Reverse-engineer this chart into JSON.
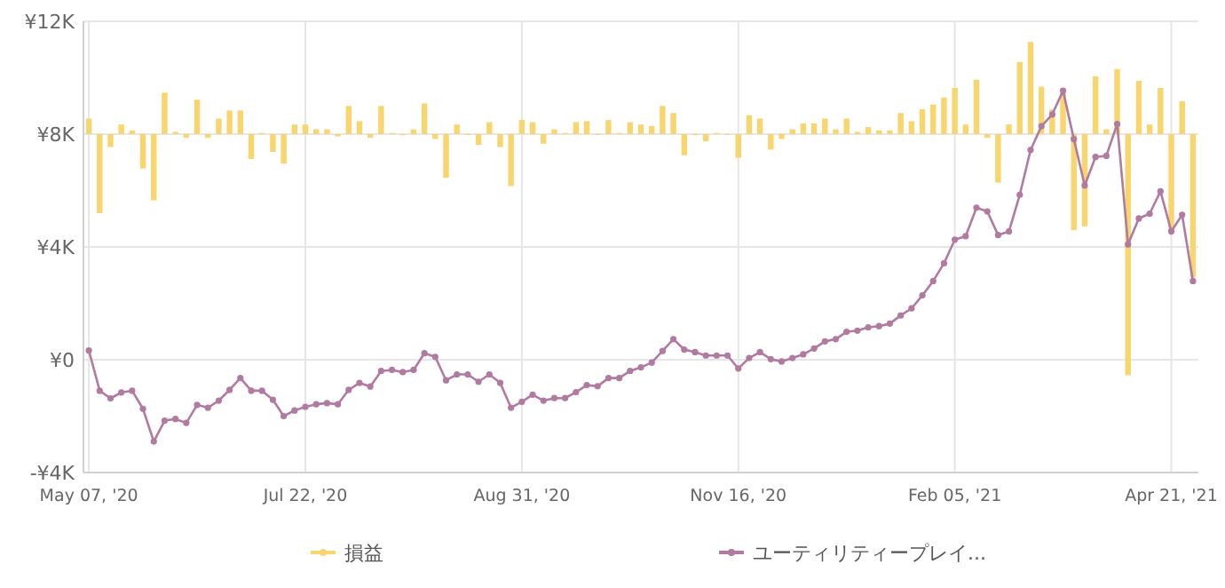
{
  "chart_data": {
    "type": "bar",
    "categories": [
      "May 07, '20",
      null,
      null,
      null,
      null,
      null,
      null,
      null,
      null,
      null,
      null,
      null,
      null,
      null,
      null,
      null,
      null,
      null,
      null,
      null,
      "Jul 22, '20",
      null,
      null,
      null,
      null,
      null,
      null,
      null,
      null,
      null,
      null,
      null,
      null,
      null,
      null,
      null,
      null,
      null,
      null,
      null,
      "Aug 31, '20",
      null,
      null,
      null,
      null,
      null,
      null,
      null,
      null,
      null,
      null,
      null,
      null,
      null,
      null,
      null,
      null,
      null,
      null,
      null,
      "Nov 16, '20",
      null,
      null,
      null,
      null,
      null,
      null,
      null,
      null,
      null,
      null,
      null,
      null,
      null,
      null,
      null,
      null,
      null,
      null,
      null,
      "Feb 05, '21",
      null,
      null,
      null,
      null,
      null,
      null,
      null,
      null,
      null,
      null,
      null,
      null,
      null,
      null,
      null,
      null,
      null,
      null,
      null,
      "Apr 21, '21",
      null,
      null
    ],
    "series": [
      {
        "name": "損益",
        "color": "#f9d56e",
        "base": [
          8000,
          8000,
          8000,
          8000,
          8000,
          8000,
          8000,
          8000,
          8000,
          8000,
          8000,
          8000,
          8000,
          8000,
          8000,
          8000,
          8000,
          8000,
          8000,
          8000,
          8000,
          8000,
          8000,
          8000,
          8000,
          8000,
          8000,
          8000,
          8000,
          8000,
          8000,
          8000,
          8000,
          8000,
          8000,
          8000,
          8000,
          8000,
          8000,
          8000,
          8000,
          8000,
          8000,
          8000,
          8000,
          8000,
          8000,
          8000,
          8000,
          8000,
          8000,
          8000,
          8000,
          8000,
          8000,
          8000,
          8000,
          8000,
          8000,
          8000,
          8000,
          8000,
          8000,
          8000,
          8000,
          8000,
          8000,
          8000,
          8000,
          8000,
          8000,
          8000,
          8000,
          8000,
          8000,
          8000,
          8000,
          8000,
          8000,
          8000,
          8000,
          8000,
          8000,
          8000,
          8000,
          8000,
          8000,
          8000,
          8000,
          8000,
          8000,
          8000,
          8000,
          8000,
          8000,
          8000,
          8000,
          8000,
          8000,
          8000,
          8000,
          8000,
          8000
        ],
        "values": [
          550,
          -2800,
          -460,
          340,
          130,
          -1220,
          -2350,
          1470,
          80,
          -130,
          1220,
          -130,
          550,
          840,
          840,
          -880,
          40,
          -630,
          -1050,
          340,
          340,
          170,
          170,
          -80,
          1000,
          460,
          -130,
          1000,
          40,
          -40,
          170,
          1090,
          -170,
          -1550,
          340,
          0,
          -380,
          420,
          -460,
          -1840,
          500,
          420,
          -340,
          170,
          40,
          420,
          460,
          0,
          500,
          40,
          420,
          340,
          290,
          1000,
          750,
          -750,
          -40,
          -250,
          40,
          0,
          -840,
          670,
          550,
          -550,
          -170,
          170,
          380,
          380,
          550,
          170,
          550,
          80,
          250,
          130,
          130,
          750,
          460,
          880,
          1050,
          1300,
          1640,
          340,
          1930,
          -130,
          -1720,
          340,
          2560,
          3270,
          1680,
          880,
          1470,
          -3400,
          -3270,
          2050,
          170,
          2310,
          -8550,
          1890,
          340,
          1640,
          -3400,
          1170,
          -5070
        ]
      },
      {
        "name": "ユーティリティープレイ...",
        "type": "line",
        "color": "#b07aa1",
        "marker": "circle",
        "values": [
          330,
          -1100,
          -1370,
          -1160,
          -1100,
          -1740,
          -2900,
          -2160,
          -2100,
          -2240,
          -1600,
          -1700,
          -1450,
          -1070,
          -650,
          -1100,
          -1100,
          -1420,
          -2000,
          -1800,
          -1670,
          -1580,
          -1540,
          -1580,
          -1070,
          -820,
          -950,
          -400,
          -360,
          -440,
          -360,
          230,
          100,
          -730,
          -520,
          -520,
          -780,
          -520,
          -820,
          -1700,
          -1490,
          -1240,
          -1450,
          -1360,
          -1360,
          -1150,
          -900,
          -940,
          -650,
          -650,
          -400,
          -270,
          -100,
          310,
          730,
          360,
          270,
          150,
          150,
          150,
          -310,
          60,
          270,
          20,
          -60,
          60,
          190,
          400,
          650,
          730,
          990,
          1030,
          1150,
          1190,
          1280,
          1570,
          1820,
          2280,
          2790,
          3420,
          4260,
          4380,
          5390,
          5260,
          4420,
          4550,
          5850,
          7440,
          8280,
          8700,
          9540,
          7820,
          6180,
          7190,
          7230,
          8360,
          4090,
          5010,
          5180,
          5970,
          4550,
          5140,
          2790
        ]
      }
    ],
    "ylim": [
      -4000,
      12000
    ],
    "yticks": [
      {
        "value": -4000,
        "label": "-¥4K"
      },
      {
        "value": 0,
        "label": "¥0"
      },
      {
        "value": 4000,
        "label": "¥4K"
      },
      {
        "value": 8000,
        "label": "¥8K"
      },
      {
        "value": 12000,
        "label": "¥12K"
      }
    ],
    "grid": true,
    "legend": "bottom"
  }
}
